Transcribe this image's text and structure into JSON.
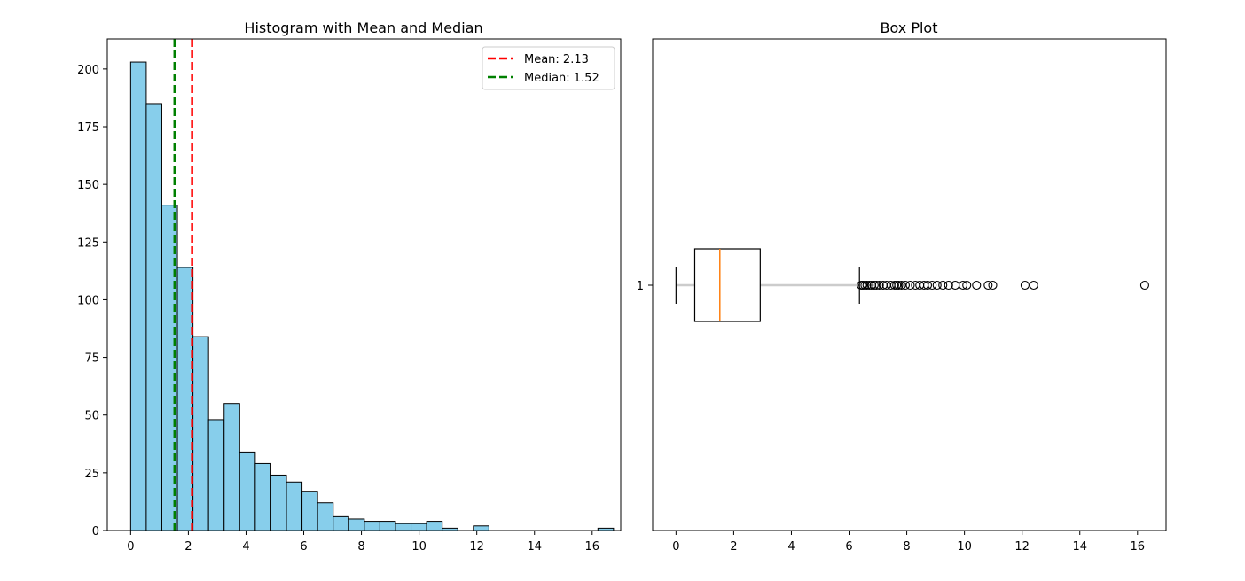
{
  "chart_data": [
    {
      "type": "histogram",
      "title": "Histogram with Mean and Median",
      "xlabel": "",
      "ylabel": "",
      "xlim": [
        -0.81,
        16.99
      ],
      "ylim": [
        0,
        213
      ],
      "xticks": [
        0,
        2,
        4,
        6,
        8,
        10,
        12,
        14,
        16
      ],
      "yticks": [
        0,
        25,
        50,
        75,
        100,
        125,
        150,
        175,
        200
      ],
      "bar_color": "#87ceeb",
      "edge_color": "#000000",
      "bin_start": 0.0,
      "bin_width": 0.54,
      "counts": [
        203,
        185,
        141,
        114,
        84,
        48,
        55,
        34,
        29,
        24,
        21,
        17,
        12,
        6,
        5,
        4,
        4,
        3,
        3,
        4,
        1,
        0,
        2,
        0,
        0,
        0,
        0,
        0,
        0,
        0,
        1
      ],
      "lines": [
        {
          "label": "Mean: 2.13",
          "x": 2.13,
          "color": "#ff0000",
          "style": "dashed"
        },
        {
          "label": "Median: 1.52",
          "x": 1.52,
          "color": "#008000",
          "style": "dashed"
        }
      ],
      "legend": {
        "position": "top-right",
        "entries": [
          "Mean: 2.13",
          "Median: 1.52"
        ]
      }
    },
    {
      "type": "boxplot",
      "title": "Box Plot",
      "orientation": "horizontal",
      "xlim": [
        -0.81,
        16.99
      ],
      "xticks": [
        0,
        2,
        4,
        6,
        8,
        10,
        12,
        14,
        16
      ],
      "ytick_labels": [
        "1"
      ],
      "stats": {
        "whisker_low": 0.0,
        "q1": 0.65,
        "median": 1.52,
        "q3": 2.92,
        "whisker_high": 6.36
      },
      "outliers": [
        6.42,
        6.48,
        6.55,
        6.62,
        6.7,
        6.78,
        6.87,
        6.95,
        7.05,
        7.18,
        7.3,
        7.45,
        7.58,
        7.65,
        7.72,
        7.82,
        7.95,
        8.12,
        8.3,
        8.45,
        8.6,
        8.72,
        8.88,
        9.05,
        9.25,
        9.45,
        9.68,
        9.95,
        10.08,
        10.42,
        10.82,
        10.98,
        12.1,
        12.4,
        16.25
      ],
      "median_color": "#ff7f0e",
      "whisker_color": "#cccccc"
    }
  ]
}
